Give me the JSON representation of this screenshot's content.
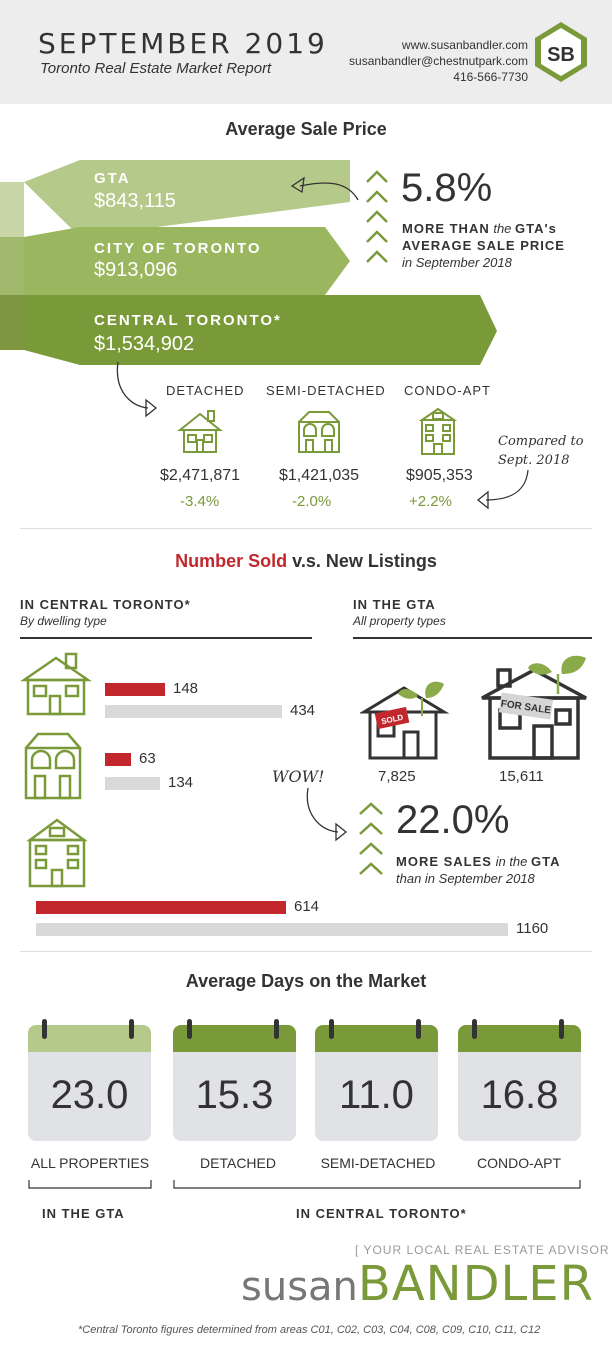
{
  "header": {
    "title": "SEPTEMBER 2019",
    "subtitle": "Toronto Real Estate Market Report",
    "website": "www.susanbandler.com",
    "email": "susanbandler@chestnutpark.com",
    "phone": "416-566-7730",
    "logo_text": "SB"
  },
  "avg_price": {
    "heading": "Average Sale Price",
    "bands": [
      {
        "label": "GTA",
        "value": "$843,115"
      },
      {
        "label": "CITY OF TORONTO",
        "value": "$913,096"
      },
      {
        "label": "CENTRAL TORONTO*",
        "value": "$1,534,902"
      }
    ],
    "increase": {
      "percent": "5.8%",
      "line1": "MORE THAN",
      "line1_em": "the",
      "line1_tail": "GTA's",
      "line2": "AVERAGE SALE PRICE",
      "line3": "in September 2018"
    },
    "types": [
      {
        "label": "DETACHED",
        "price": "$2,471,871",
        "change": "-3.4%",
        "icon": "detached-house-icon"
      },
      {
        "label": "SEMI-DETACHED",
        "price": "$1,421,035",
        "change": "-2.0%",
        "icon": "semi-detached-icon"
      },
      {
        "label": "CONDO-APT",
        "price": "$905,353",
        "change": "+2.2%",
        "icon": "condo-building-icon"
      }
    ],
    "note_line1": "Compared to",
    "note_line2": "Sept. 2018"
  },
  "sold_vs_listings": {
    "heading_red": "Number Sold",
    "heading_rest": "v.s. New Listings",
    "left_title": "IN CENTRAL TORONTO*",
    "left_note": "By dwelling type",
    "right_title": "IN THE GTA",
    "right_note": "All property types",
    "chart_data": {
      "type": "bar",
      "categories": [
        "Detached",
        "Semi-detached",
        "Condo-apt"
      ],
      "series": [
        {
          "name": "Sold",
          "values": [
            148,
            63,
            614
          ]
        },
        {
          "name": "New Listings",
          "values": [
            434,
            134,
            1160
          ]
        }
      ]
    },
    "gta_sold": "7,825",
    "gta_listings": "15,611",
    "sold_sign": "SOLD",
    "for_sale_sign": "FOR SALE",
    "wow": "WOW!",
    "sales_increase": {
      "percent": "22.0%",
      "line1": "MORE SALES",
      "line1_em": "in the",
      "line1_tail": "GTA",
      "line2": "than in September 2018"
    }
  },
  "days_on_market": {
    "heading": "Average Days on the Market",
    "cards": [
      {
        "value": "23.0",
        "label": "ALL PROPERTIES"
      },
      {
        "value": "15.3",
        "label": "DETACHED"
      },
      {
        "value": "11.0",
        "label": "SEMI-DETACHED"
      },
      {
        "value": "16.8",
        "label": "CONDO-APT"
      }
    ],
    "group_gta": "IN THE GTA",
    "group_central": "IN CENTRAL TORONTO*"
  },
  "footer": {
    "tagline": "[ YOUR LOCAL REAL ESTATE ADVISOR ]",
    "brand_light": "susan",
    "brand_bold": "BANDLER",
    "footnote": "*Central Toronto figures determined from areas C01, C02, C03, C04, C08, C09, C10, C11, C12"
  },
  "colors": {
    "green": "#7a9a3a",
    "light_green": "#b5c98a",
    "red": "#c1272d",
    "grey_bar": "#d9d9d9",
    "calendar_body": "#e1e2e6"
  }
}
